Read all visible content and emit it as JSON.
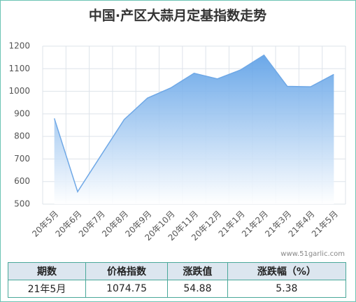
{
  "chart_data": {
    "type": "area",
    "title": "中国·产区大蒜月定基指数走势",
    "categories": [
      "20年5月",
      "20年6月",
      "20年7月",
      "20年8月",
      "20年9月",
      "20年10月",
      "20年11月",
      "20年12月",
      "21年1月",
      "21年2月",
      "21年3月",
      "21年4月",
      "21年5月"
    ],
    "values": [
      880,
      555,
      715,
      875,
      970,
      1015,
      1080,
      1055,
      1095,
      1160,
      1022,
      1020,
      1074.75
    ],
    "color": "#6fa8e6",
    "ylim": [
      500,
      1200
    ],
    "yticks": [
      500,
      600,
      700,
      800,
      900,
      1000,
      1100,
      1200
    ],
    "grid": true,
    "watermark": "www.51garlic.com"
  },
  "table": {
    "header": [
      "期数",
      "价格指数",
      "涨跌值",
      "涨跌幅（%）"
    ],
    "rows": [
      [
        "21年5月",
        "1074.75",
        "54.88",
        "5.38"
      ]
    ]
  }
}
